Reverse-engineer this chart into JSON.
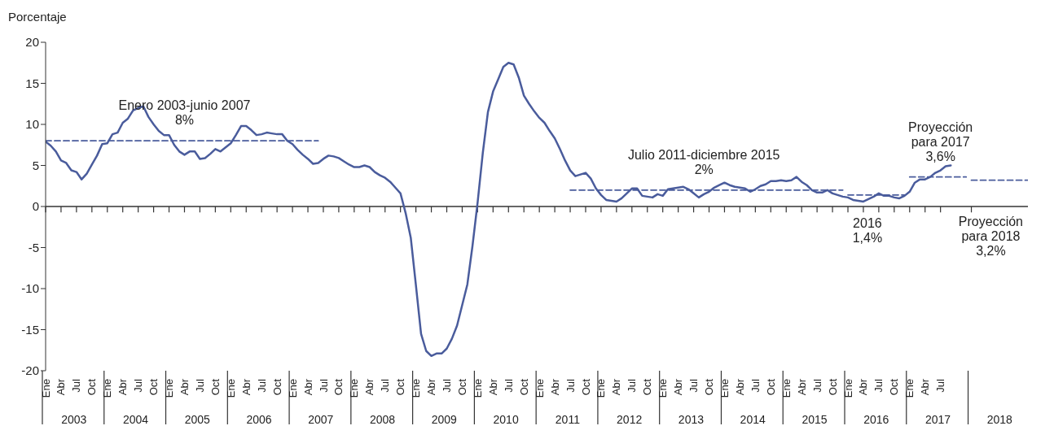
{
  "chart_data": {
    "type": "line",
    "ylabel": "Porcentaje",
    "xlim": [
      "2003-01",
      "2018-12"
    ],
    "xticks": [
      {
        "value": "2003-01",
        "label": "Ene"
      },
      {
        "value": "2003-04",
        "label": "Abr"
      },
      {
        "value": "2003-07",
        "label": "Jul"
      },
      {
        "value": "2003-10",
        "label": "Oct"
      },
      {
        "value": "2004-01",
        "label": "Ene"
      },
      {
        "value": "2004-04",
        "label": "Abr"
      },
      {
        "value": "2004-07",
        "label": "Jul"
      },
      {
        "value": "2004-10",
        "label": "Oct"
      },
      {
        "value": "2005-01",
        "label": "Ene"
      },
      {
        "value": "2005-04",
        "label": "Abr"
      },
      {
        "value": "2005-07",
        "label": "Jul"
      },
      {
        "value": "2005-10",
        "label": "Oct"
      },
      {
        "value": "2006-01",
        "label": "Ene"
      },
      {
        "value": "2006-04",
        "label": "Abr"
      },
      {
        "value": "2006-07",
        "label": "Jul"
      },
      {
        "value": "2006-10",
        "label": "Oct"
      },
      {
        "value": "2007-01",
        "label": "Ene"
      },
      {
        "value": "2007-04",
        "label": "Abr"
      },
      {
        "value": "2007-07",
        "label": "Jul"
      },
      {
        "value": "2007-10",
        "label": "Oct"
      },
      {
        "value": "2008-01",
        "label": "Ene"
      },
      {
        "value": "2008-04",
        "label": "Abr"
      },
      {
        "value": "2008-07",
        "label": "Jul"
      },
      {
        "value": "2008-10",
        "label": "Oct"
      },
      {
        "value": "2009-01",
        "label": "Ene"
      },
      {
        "value": "2009-04",
        "label": "Abr"
      },
      {
        "value": "2009-07",
        "label": "Jul"
      },
      {
        "value": "2009-10",
        "label": "Oct"
      },
      {
        "value": "2010-01",
        "label": "Ene"
      },
      {
        "value": "2010-04",
        "label": "Abr"
      },
      {
        "value": "2010-07",
        "label": "Jul"
      },
      {
        "value": "2010-10",
        "label": "Oct"
      },
      {
        "value": "2011-01",
        "label": "Ene"
      },
      {
        "value": "2011-04",
        "label": "Abr"
      },
      {
        "value": "2011-07",
        "label": "Jul"
      },
      {
        "value": "2011-10",
        "label": "Oct"
      },
      {
        "value": "2012-01",
        "label": "Ene"
      },
      {
        "value": "2012-04",
        "label": "Abr"
      },
      {
        "value": "2012-07",
        "label": "Jul"
      },
      {
        "value": "2012-10",
        "label": "Oct"
      },
      {
        "value": "2013-01",
        "label": "Ene"
      },
      {
        "value": "2013-04",
        "label": "Abr"
      },
      {
        "value": "2013-07",
        "label": "Jul"
      },
      {
        "value": "2013-10",
        "label": "Oct"
      },
      {
        "value": "2014-01",
        "label": "Ene"
      },
      {
        "value": "2014-04",
        "label": "Abr"
      },
      {
        "value": "2014-07",
        "label": "Jul"
      },
      {
        "value": "2014-10",
        "label": "Oct"
      },
      {
        "value": "2015-01",
        "label": "Ene"
      },
      {
        "value": "2015-04",
        "label": "Abr"
      },
      {
        "value": "2015-07",
        "label": "Jul"
      },
      {
        "value": "2015-10",
        "label": "Oct"
      },
      {
        "value": "2016-01",
        "label": "Ene"
      },
      {
        "value": "2016-04",
        "label": "Abr"
      },
      {
        "value": "2016-07",
        "label": "Jul"
      },
      {
        "value": "2016-10",
        "label": "Oct"
      },
      {
        "value": "2017-01",
        "label": "Ene"
      },
      {
        "value": "2017-04",
        "label": "Abr"
      },
      {
        "value": "2017-07",
        "label": "Jul"
      },
      {
        "value": "2018-01",
        "label": null
      }
    ],
    "ylim": [
      -20,
      20
    ],
    "yticks": [
      -20,
      -15,
      -10,
      -5,
      0,
      5,
      10,
      15,
      20
    ],
    "series": [
      {
        "color": "#4a5c9c",
        "line_style": "solid",
        "x": [
          "2003-01",
          "2003-02",
          "2003-03",
          "2003-04",
          "2003-05",
          "2003-06",
          "2003-07",
          "2003-08",
          "2003-09",
          "2003-10",
          "2003-11",
          "2003-12",
          "2004-01",
          "2004-02",
          "2004-03",
          "2004-04",
          "2004-05",
          "2004-06",
          "2004-07",
          "2004-08",
          "2004-09",
          "2004-10",
          "2004-11",
          "2004-12",
          "2005-01",
          "2005-02",
          "2005-03",
          "2005-04",
          "2005-05",
          "2005-06",
          "2005-07",
          "2005-08",
          "2005-09",
          "2005-10",
          "2005-11",
          "2005-12",
          "2006-01",
          "2006-02",
          "2006-03",
          "2006-04",
          "2006-05",
          "2006-06",
          "2006-07",
          "2006-08",
          "2006-09",
          "2006-10",
          "2006-11",
          "2006-12",
          "2007-01",
          "2007-02",
          "2007-03",
          "2007-04",
          "2007-05",
          "2007-06",
          "2007-07",
          "2007-08",
          "2007-09",
          "2007-10",
          "2007-11",
          "2007-12",
          "2008-01",
          "2008-02",
          "2008-03",
          "2008-04",
          "2008-05",
          "2008-06",
          "2008-07",
          "2008-08",
          "2008-09",
          "2008-10",
          "2008-11",
          "2008-12",
          "2009-01",
          "2009-02",
          "2009-03",
          "2009-04",
          "2009-05",
          "2009-06",
          "2009-07",
          "2009-08",
          "2009-09",
          "2009-10",
          "2009-11",
          "2009-12",
          "2010-01",
          "2010-02",
          "2010-03",
          "2010-04",
          "2010-05",
          "2010-06",
          "2010-07",
          "2010-08",
          "2010-09",
          "2010-10",
          "2010-11",
          "2010-12",
          "2011-01",
          "2011-02",
          "2011-03",
          "2011-04",
          "2011-05",
          "2011-06",
          "2011-07",
          "2011-08",
          "2011-09",
          "2011-10",
          "2011-11",
          "2011-12",
          "2012-01",
          "2012-02",
          "2012-03",
          "2012-04",
          "2012-05",
          "2012-06",
          "2012-07",
          "2012-08",
          "2012-09",
          "2012-10",
          "2012-11",
          "2012-12",
          "2013-01",
          "2013-02",
          "2013-03",
          "2013-04",
          "2013-05",
          "2013-06",
          "2013-07",
          "2013-08",
          "2013-09",
          "2013-10",
          "2013-11",
          "2013-12",
          "2014-01",
          "2014-02",
          "2014-03",
          "2014-04",
          "2014-05",
          "2014-06",
          "2014-07",
          "2014-08",
          "2014-09",
          "2014-10",
          "2014-11",
          "2014-12",
          "2015-01",
          "2015-02",
          "2015-03",
          "2015-04",
          "2015-05",
          "2015-06",
          "2015-07",
          "2015-08",
          "2015-09",
          "2015-10",
          "2015-11",
          "2015-12",
          "2016-01",
          "2016-02",
          "2016-03",
          "2016-04",
          "2016-05",
          "2016-06",
          "2016-07",
          "2016-08",
          "2016-09",
          "2016-10",
          "2016-11",
          "2016-12",
          "2017-01",
          "2017-02",
          "2017-03",
          "2017-04",
          "2017-05",
          "2017-06",
          "2017-07",
          "2017-08",
          "2017-09"
        ],
        "values": [
          7.9,
          7.4,
          6.7,
          5.6,
          5.3,
          4.4,
          4.2,
          3.3,
          4.0,
          5.1,
          6.2,
          7.6,
          7.7,
          8.8,
          9.0,
          10.2,
          10.7,
          11.7,
          12.0,
          12.2,
          10.9,
          10.0,
          9.2,
          8.7,
          8.7,
          7.5,
          6.7,
          6.3,
          6.7,
          6.7,
          5.8,
          5.9,
          6.4,
          7.0,
          6.7,
          7.2,
          7.7,
          8.7,
          9.8,
          9.8,
          9.3,
          8.7,
          8.8,
          9.0,
          8.9,
          8.8,
          8.8,
          8.0,
          7.6,
          6.9,
          6.3,
          5.8,
          5.2,
          5.3,
          5.8,
          6.2,
          6.1,
          5.9,
          5.5,
          5.1,
          4.8,
          4.8,
          5.0,
          4.8,
          4.2,
          3.8,
          3.5,
          3.0,
          2.3,
          1.6,
          -0.8,
          -3.8,
          -9.6,
          -15.5,
          -17.6,
          -18.2,
          -17.9,
          -17.9,
          -17.3,
          -16.1,
          -14.5,
          -12.0,
          -9.5,
          -4.8,
          0.5,
          6.5,
          11.5,
          14.0,
          15.5,
          17.0,
          17.5,
          17.3,
          15.7,
          13.5,
          12.5,
          11.6,
          10.8,
          10.2,
          9.2,
          8.3,
          7.0,
          5.6,
          4.4,
          3.7,
          3.9,
          4.1,
          3.4,
          2.2,
          1.4,
          0.8,
          0.7,
          0.6,
          1.0,
          1.6,
          2.2,
          2.2,
          1.3,
          1.2,
          1.1,
          1.5,
          1.3,
          2.1,
          2.2,
          2.3,
          2.4,
          2.1,
          1.6,
          1.1,
          1.5,
          1.8,
          2.3,
          2.6,
          2.9,
          2.6,
          2.4,
          2.3,
          2.2,
          1.8,
          2.1,
          2.5,
          2.7,
          3.1,
          3.1,
          3.2,
          3.1,
          3.2,
          3.6,
          3.0,
          2.6,
          2.0,
          1.7,
          1.7,
          2.0,
          1.6,
          1.4,
          1.2,
          1.1,
          0.8,
          0.7,
          0.6,
          0.9,
          1.2,
          1.6,
          1.3,
          1.3,
          1.1,
          1.0,
          1.3,
          1.8,
          2.9,
          3.3,
          3.3,
          3.6,
          4.1,
          4.4,
          4.9,
          5.0
        ]
      },
      {
        "type": "line",
        "color": "#4a5c9c",
        "line_style": "dashed",
        "x": [
          "2003-01",
          "2007-06"
        ],
        "values": [
          8,
          8
        ]
      },
      {
        "type": "line",
        "color": "#4a5c9c",
        "line_style": "dashed",
        "x": [
          "2011-07",
          "2015-12"
        ],
        "values": [
          2,
          2
        ]
      },
      {
        "type": "line",
        "color": "#4a5c9c",
        "line_style": "dashed",
        "x": [
          "2016-01",
          "2016-12"
        ],
        "values": [
          1.4,
          1.4
        ]
      },
      {
        "type": "line",
        "color": "#4a5c9c",
        "line_style": "dashed",
        "x": [
          "2017-01",
          "2017-12"
        ],
        "values": [
          3.6,
          3.6
        ]
      },
      {
        "type": "line",
        "color": "#4a5c9c",
        "line_style": "dashed",
        "x": [
          "2018-01",
          "2018-12"
        ],
        "values": [
          3.2,
          3.2
        ]
      }
    ],
    "annotations": [
      {
        "text": "Enero 2003-junio 2007\n8%",
        "x": "2005-04",
        "y": 8
      },
      {
        "text": "Julio 2011-diciembre 2015\n2%",
        "x": "2013-09",
        "y": 2
      },
      {
        "text": "2016\n1,4%",
        "x": "2016-07",
        "y": 1.4
      },
      {
        "text": "Proyección\npara 2017\n3,6%",
        "x": "2017-07",
        "y": 3.6
      },
      {
        "text": "Proyección\npara 2018\n3,2%",
        "x": "2018-07",
        "y": 3.2
      },
      "2003",
      "2004",
      "2005",
      "2006",
      "2007",
      "2008",
      "2009",
      "2010",
      "2011",
      "2012",
      "2013",
      "2014",
      "2015",
      "2016",
      "2017",
      "2018"
    ]
  }
}
